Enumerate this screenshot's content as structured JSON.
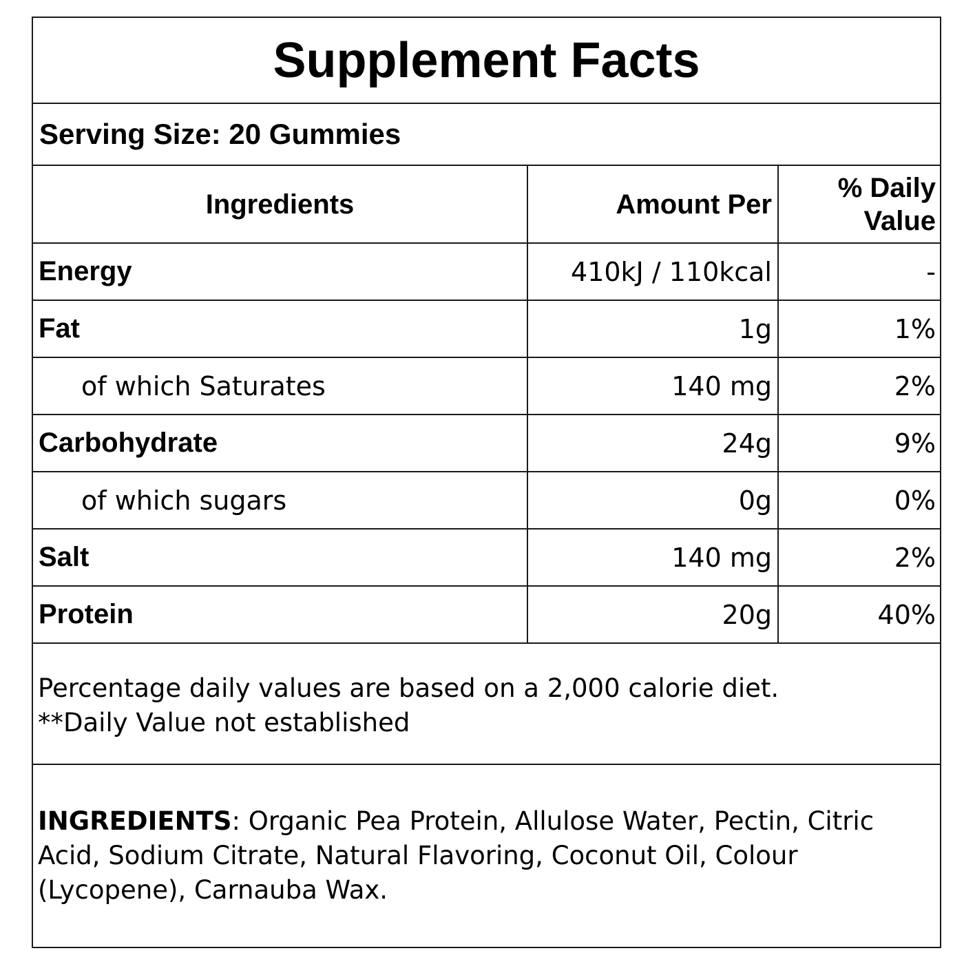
{
  "title": "Supplement Facts",
  "serving_size": "Serving Size: 20 Gummies",
  "table": {
    "headers": {
      "ingredients": "Ingredients",
      "amount": "Amount Per",
      "daily_value": "% Daily Value"
    },
    "rows": [
      {
        "name": "Energy",
        "amount": "410kJ /  110kcal",
        "dv": "-"
      },
      {
        "name": "Fat",
        "amount": "1g",
        "dv": "1%"
      },
      {
        "name": "of which Saturates",
        "amount": "140 mg",
        "dv": "2%"
      },
      {
        "name": "Carbohydrate",
        "amount": "24g",
        "dv": "9%"
      },
      {
        "name": "of which sugars",
        "amount": "0g",
        "dv": "0%"
      },
      {
        "name": "Salt",
        "amount": "140 mg",
        "dv": "2%"
      },
      {
        "name": "Protein",
        "amount": "20g",
        "dv": "40%"
      }
    ]
  },
  "notes": {
    "line1": "Percentage daily values are based on a 2,000 calorie diet.",
    "line2": "**Daily Value not established"
  },
  "ingredients": {
    "heading": "INGREDIENTS",
    "text": ": Organic Pea Protein, Allulose Water, Pectin, Citric Acid, Sodium Citrate, Natural Flavoring, Coconut Oil, Colour (Lycopene), Carnauba Wax."
  }
}
